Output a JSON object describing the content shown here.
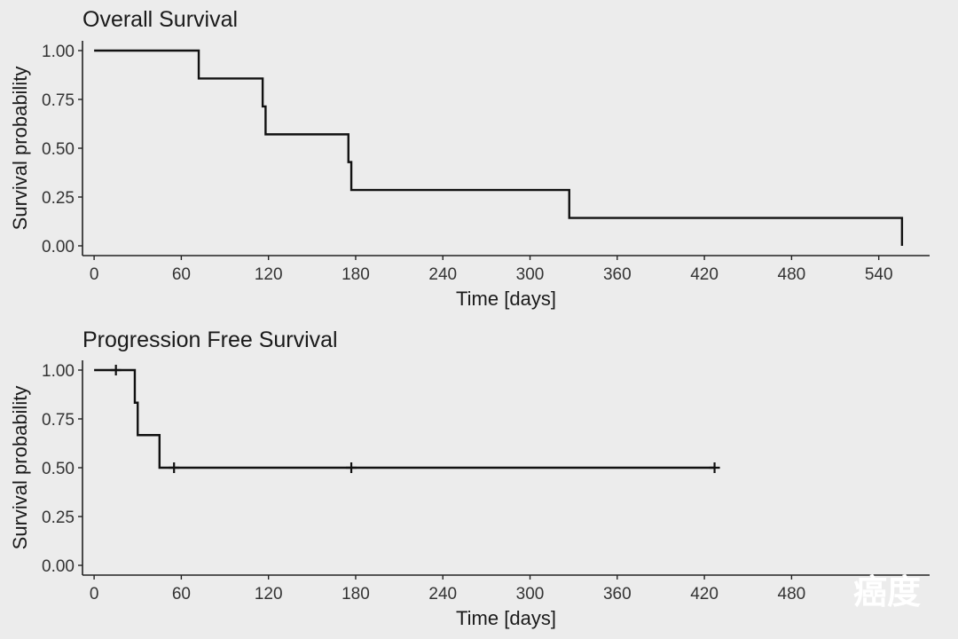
{
  "chart_data": [
    {
      "type": "line",
      "step": true,
      "title": "Overall Survival",
      "xlabel": "Time [days]",
      "ylabel": "Survival probability",
      "xlim": [
        -8,
        575
      ],
      "ylim": [
        -0.05,
        1.05
      ],
      "xticks": [
        0,
        60,
        120,
        180,
        240,
        300,
        360,
        420,
        480,
        540
      ],
      "yticks": [
        0.0,
        0.25,
        0.5,
        0.75,
        1.0
      ],
      "ytick_labels": [
        "0.00",
        "0.25",
        "0.50",
        "0.75",
        "1.00"
      ],
      "series": [
        {
          "name": "Overall Survival",
          "x": [
            0,
            72,
            116,
            118,
            175,
            177,
            327,
            556
          ],
          "y": [
            1.0,
            0.857,
            0.714,
            0.571,
            0.429,
            0.286,
            0.143,
            0.0
          ]
        }
      ],
      "censored": []
    },
    {
      "type": "line",
      "step": true,
      "title": "Progression Free Survival",
      "xlabel": "Time [days]",
      "ylabel": "Survival probability",
      "xlim": [
        -8,
        575
      ],
      "ylim": [
        -0.05,
        1.05
      ],
      "xticks": [
        0,
        60,
        120,
        180,
        240,
        300,
        360,
        420,
        480
      ],
      "yticks": [
        0.0,
        0.25,
        0.5,
        0.75,
        1.0
      ],
      "ytick_labels": [
        "0.00",
        "0.25",
        "0.50",
        "0.75",
        "1.00"
      ],
      "series": [
        {
          "name": "Progression Free Survival",
          "x": [
            0,
            28,
            30,
            45
          ],
          "y": [
            1.0,
            0.833,
            0.667,
            0.5
          ],
          "x_end": 427
        }
      ],
      "censored": [
        {
          "x": 15,
          "y": 1.0
        },
        {
          "x": 55,
          "y": 0.5
        },
        {
          "x": 177,
          "y": 0.5
        },
        {
          "x": 427,
          "y": 0.5
        }
      ]
    }
  ],
  "watermark": "癌度"
}
